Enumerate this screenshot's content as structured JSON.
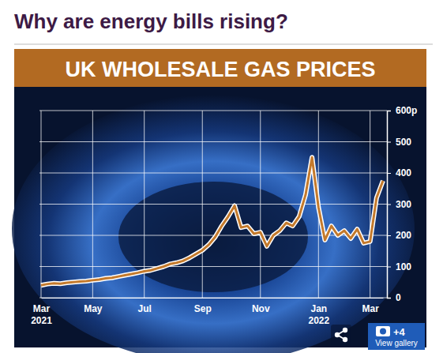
{
  "heading": "Why are energy bills rising?",
  "chart_data": {
    "type": "line",
    "title": "UK WHOLESALE GAS PRICES",
    "categories": [
      "Mar 2021",
      null,
      null,
      null,
      null,
      null,
      null,
      null,
      "May",
      null,
      null,
      null,
      null,
      null,
      null,
      null,
      "Jul",
      null,
      null,
      null,
      null,
      null,
      null,
      null,
      null,
      "Sep",
      null,
      null,
      null,
      null,
      null,
      null,
      null,
      null,
      "Nov",
      null,
      null,
      null,
      null,
      null,
      null,
      null,
      null,
      "Jan 2022",
      null,
      null,
      null,
      null,
      null,
      null,
      null,
      "Mar",
      null,
      null
    ],
    "values": [
      40,
      44,
      46,
      45,
      48,
      50,
      52,
      53,
      56,
      58,
      62,
      64,
      68,
      72,
      76,
      80,
      85,
      88,
      94,
      100,
      108,
      112,
      118,
      128,
      140,
      152,
      170,
      195,
      230,
      260,
      295,
      225,
      230,
      205,
      210,
      165,
      200,
      215,
      240,
      230,
      260,
      330,
      450,
      290,
      185,
      230,
      200,
      215,
      190,
      220,
      175,
      180,
      320,
      375
    ],
    "color": "#c47a2c",
    "ylim": [
      0,
      600
    ],
    "yticks": [
      0,
      100,
      200,
      300,
      400,
      500,
      {
        "value": 600,
        "label": "600p"
      }
    ],
    "grid": true
  },
  "gallery": {
    "count": "+4",
    "label": "View gallery"
  }
}
